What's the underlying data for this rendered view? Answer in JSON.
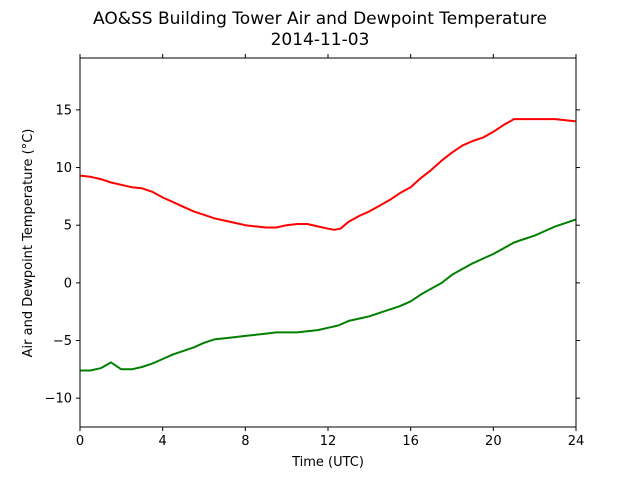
{
  "chart_data": {
    "type": "line",
    "title": [
      "AO&SS Building Tower Air and Dewpoint Temperature",
      "2014-11-03"
    ],
    "xlabel": "Time (UTC)",
    "ylabel": "Air and Dewpoint Temperature (°C)",
    "xlim": [
      0,
      24
    ],
    "ylim": [
      -12.5,
      19.5
    ],
    "xticks": [
      0,
      4,
      8,
      12,
      16,
      20,
      24
    ],
    "yticks": [
      -10,
      -5,
      0,
      5,
      10,
      15
    ],
    "grid": false,
    "series": [
      {
        "color": "#ff0000",
        "x": [
          0,
          0.5,
          1,
          1.5,
          2,
          2.5,
          3,
          3.5,
          4,
          4.5,
          5,
          5.5,
          6,
          6.5,
          7,
          7.5,
          8,
          8.5,
          9,
          9.5,
          10,
          10.5,
          11,
          11.5,
          12,
          12.3,
          12.6,
          13,
          13.5,
          14,
          14.5,
          15,
          15.5,
          16,
          16.5,
          17,
          17.5,
          18,
          18.5,
          19,
          19.5,
          20,
          20.5,
          21,
          21.5,
          22,
          22.5,
          23,
          23.5,
          24
        ],
        "y": [
          9.3,
          9.2,
          9.0,
          8.7,
          8.5,
          8.3,
          8.2,
          7.9,
          7.4,
          7.0,
          6.6,
          6.2,
          5.9,
          5.6,
          5.4,
          5.2,
          5.0,
          4.9,
          4.8,
          4.8,
          5.0,
          5.1,
          5.1,
          4.9,
          4.7,
          4.6,
          4.7,
          5.3,
          5.8,
          6.2,
          6.7,
          7.2,
          7.8,
          8.3,
          9.1,
          9.8,
          10.6,
          11.3,
          11.9,
          12.3,
          12.6,
          13.1,
          13.7,
          14.2,
          14.2,
          14.2,
          14.2,
          14.2,
          14.1,
          14.0
        ]
      },
      {
        "color": "#008000",
        "x": [
          0,
          0.5,
          1,
          1.5,
          2,
          2.5,
          3,
          3.5,
          4,
          4.5,
          5,
          5.5,
          6,
          6.5,
          7,
          7.5,
          8,
          8.5,
          9,
          9.5,
          10,
          10.5,
          11,
          11.5,
          12,
          12.5,
          13,
          13.5,
          14,
          14.5,
          15,
          15.5,
          16,
          16.5,
          17,
          17.5,
          18,
          18.5,
          19,
          19.5,
          20,
          20.5,
          21,
          21.5,
          22,
          22.5,
          23,
          23.5,
          24
        ],
        "y": [
          -7.6,
          -7.6,
          -7.4,
          -6.9,
          -7.5,
          -7.5,
          -7.3,
          -7.0,
          -6.6,
          -6.2,
          -5.9,
          -5.6,
          -5.2,
          -4.9,
          -4.8,
          -4.7,
          -4.6,
          -4.5,
          -4.4,
          -4.3,
          -4.3,
          -4.3,
          -4.2,
          -4.1,
          -3.9,
          -3.7,
          -3.3,
          -3.1,
          -2.9,
          -2.6,
          -2.3,
          -2.0,
          -1.6,
          -1.0,
          -0.5,
          0.0,
          0.7,
          1.2,
          1.7,
          2.1,
          2.5,
          3.0,
          3.5,
          3.8,
          4.1,
          4.5,
          4.9,
          5.2,
          5.5
        ]
      }
    ]
  }
}
